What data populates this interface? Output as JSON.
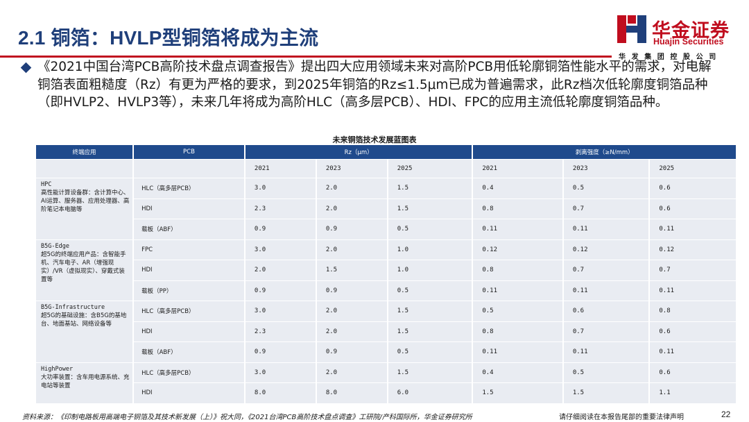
{
  "header": {
    "title": "2.1 铜箔：HVLP型铜箔将成为主流",
    "logo_cn": "华金证券",
    "logo_en": "Huajin Securities",
    "logo_sub": "华发集团控股公司"
  },
  "intro_text": "《2021中国台湾PCB高阶技术盘点调查报告》提出四大应用领域未来对高阶PCB用低轮廓铜箔性能水平的需求，对电解铜箔表面粗糙度（Rz）有更为严格的要求，到2025年铜箔的Rz≤1.5μm已成为普遍需求，此Rz档次低轮廓度铜箔品种（即HVLP2、HVLP3等），未来几年将成为高阶HLC（高多层PCB）、HDI、FPC的应用主流低轮廓度铜箔品种。",
  "table": {
    "title": "未来铜箔技术发展蓝图表",
    "headers": {
      "app": "终端应用",
      "pcb": "PCB",
      "rz": "Rz（μm）",
      "peel": "剥离强度（≥N/mm）"
    },
    "years": [
      "2021",
      "2023",
      "2025",
      "2021",
      "2023",
      "2025"
    ],
    "groups": [
      {
        "name": "HPC",
        "desc": "高性能计算设备群：含计算中心、AI运算、服务器、应用处理器、高阶笔记本电脑等",
        "rows": [
          {
            "pcb": "HLC（高多层PCB）",
            "v": [
              "3.0",
              "2.0",
              "1.5",
              "0.4",
              "0.5",
              "0.6"
            ]
          },
          {
            "pcb": "HDI",
            "v": [
              "2.3",
              "2.0",
              "1.5",
              "0.8",
              "0.7",
              "0.6"
            ]
          },
          {
            "pcb": "载板（ABF）",
            "v": [
              "0.9",
              "0.9",
              "0.5",
              "0.11",
              "0.11",
              "0.11"
            ]
          }
        ]
      },
      {
        "name": "B5G-Edge",
        "desc": "超5G的终端应用产品：含智能手机、汽车电子、AR（增强现实）/VR（虚拟现实）、穿戴式装置等",
        "rows": [
          {
            "pcb": "FPC",
            "v": [
              "3.0",
              "2.0",
              "1.0",
              "0.12",
              "0.12",
              "0.12"
            ]
          },
          {
            "pcb": "HDI",
            "v": [
              "2.0",
              "1.5",
              "1.0",
              "0.8",
              "0.7",
              "0.7"
            ]
          },
          {
            "pcb": "载板（PP）",
            "v": [
              "0.9",
              "0.9",
              "0.5",
              "0.11",
              "0.11",
              "0.11"
            ]
          }
        ]
      },
      {
        "name": "B5G-Infrastructure",
        "desc": "超5G的基础设施：含B5G的基地台、地面基站、网络设备等",
        "rows": [
          {
            "pcb": "HLC（高多层PCB）",
            "v": [
              "3.0",
              "2.0",
              "1.5",
              "0.5",
              "0.6",
              "0.8"
            ]
          },
          {
            "pcb": "HDI",
            "v": [
              "2.3",
              "2.0",
              "1.5",
              "0.8",
              "0.7",
              "0.6"
            ]
          },
          {
            "pcb": "载板（ABF）",
            "v": [
              "0.9",
              "0.9",
              "0.5",
              "0.11",
              "0.11",
              "0.11"
            ]
          }
        ]
      },
      {
        "name": "HighPower",
        "desc": "大功率装置：含车用电源系统、充电站等装置",
        "rows": [
          {
            "pcb": "HLC（高多层PCB）",
            "v": [
              "3.0",
              "2.0",
              "1.5",
              "0.4",
              "0.5",
              "0.6"
            ]
          },
          {
            "pcb": "HDI",
            "v": [
              "8.0",
              "8.0",
              "6.0",
              "1.5",
              "1.5",
              "1.1"
            ]
          }
        ]
      }
    ]
  },
  "footer": {
    "source": "资料来源：《印制电路板用高端电子铜箔及其技术新发展（上）》祝大同，《2021台湾PCB高阶技术盘点调查》工研院/产科国际所，华金证券研究所",
    "disclaimer": "请仔细阅读在本报告尾部的重要法律声明",
    "page": "22"
  },
  "colors": {
    "title_blue": "#1f3f7a",
    "brand_red": "#c00d1e",
    "header_fill": "#1f4a8c",
    "cell_fill": "#e9ecf2"
  }
}
